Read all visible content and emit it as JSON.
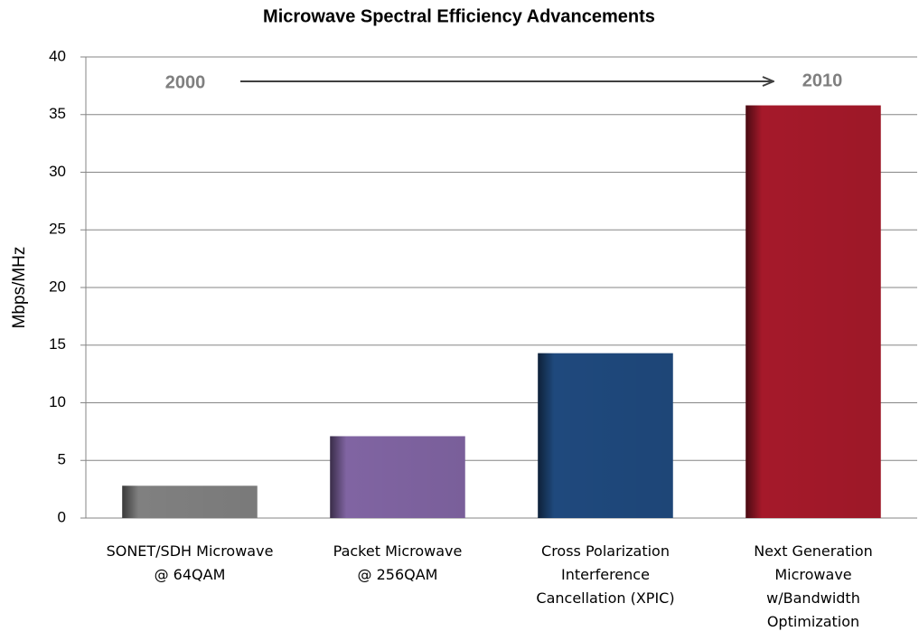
{
  "chart_data": {
    "type": "bar",
    "title": "Microwave Spectral Efficiency Advancements",
    "ylabel": "Mbps/MHz",
    "categories": [
      "SONET/SDH Microwave\n@ 64QAM",
      "Packet Microwave\n@ 256QAM",
      "Cross Polarization\nInterference\nCancellation (XPIC)",
      "Next Generation\nMicrowave\nw/Bandwidth\nOptimization"
    ],
    "values": [
      2.8,
      7.1,
      14.3,
      35.8
    ],
    "colors": [
      "#808080",
      "#8064a2",
      "#1f497d",
      "#a5192a"
    ],
    "ylim": [
      0,
      40
    ],
    "yticks": [
      0,
      5,
      10,
      15,
      20,
      25,
      30,
      35,
      40
    ],
    "grid": true,
    "annotations": [
      "2000",
      "2010"
    ]
  }
}
